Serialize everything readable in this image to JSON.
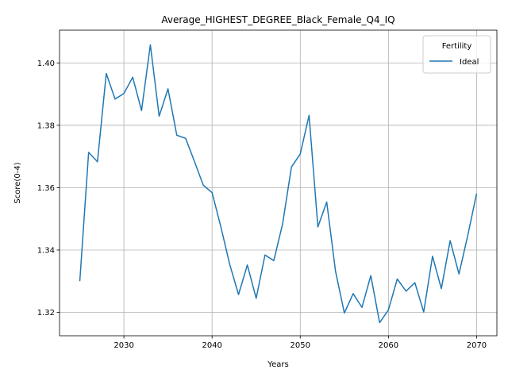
{
  "chart_data": {
    "type": "line",
    "title": "Average_HIGHEST_DEGREE_Black_Female_Q4_IQ",
    "xlabel": "Years",
    "ylabel": "Score(0-4)",
    "xlim": [
      2022.7,
      2072.3
    ],
    "ylim": [
      1.3125,
      1.4105
    ],
    "xticks": [
      2030,
      2040,
      2050,
      2060,
      2070
    ],
    "yticks": [
      1.32,
      1.34,
      1.36,
      1.38,
      1.4
    ],
    "xtick_labels": [
      "2030",
      "2040",
      "2050",
      "2060",
      "2070"
    ],
    "ytick_labels": [
      "1.32",
      "1.34",
      "1.36",
      "1.38",
      "1.40"
    ],
    "grid": true,
    "legend": {
      "title": "Fertility",
      "position": "top-right"
    },
    "series": [
      {
        "name": "Ideal",
        "color": "#1f77b4",
        "x": [
          2025,
          2026,
          2027,
          2028,
          2029,
          2030,
          2031,
          2032,
          2033,
          2034,
          2035,
          2036,
          2037,
          2038,
          2039,
          2040,
          2041,
          2042,
          2043,
          2044,
          2045,
          2046,
          2047,
          2048,
          2049,
          2050,
          2051,
          2052,
          2053,
          2054,
          2055,
          2056,
          2057,
          2058,
          2059,
          2060,
          2061,
          2062,
          2063,
          2064,
          2065,
          2066,
          2067,
          2068,
          2069,
          2070
        ],
        "y": [
          1.33,
          1.3713,
          1.3683,
          1.3966,
          1.3884,
          1.3902,
          1.3954,
          1.3847,
          1.4058,
          1.3829,
          1.3917,
          1.3768,
          1.3758,
          1.3684,
          1.3608,
          1.3584,
          1.3474,
          1.3354,
          1.3257,
          1.3352,
          1.3245,
          1.3384,
          1.3366,
          1.3484,
          1.3666,
          1.3708,
          1.3832,
          1.3474,
          1.3554,
          1.3332,
          1.3198,
          1.326,
          1.3216,
          1.3318,
          1.3167,
          1.3208,
          1.3307,
          1.3268,
          1.3295,
          1.3201,
          1.338,
          1.3276,
          1.343,
          1.3323,
          1.3447,
          1.3581
        ]
      }
    ]
  }
}
